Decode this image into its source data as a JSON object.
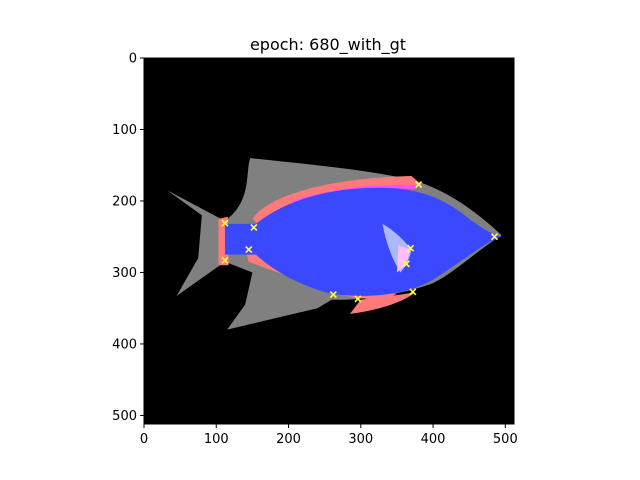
{
  "chart_data": {
    "type": "image",
    "title": "epoch: 680_with_gt",
    "xlabel": "",
    "ylabel": "",
    "xlim": [
      0,
      512
    ],
    "ylim": [
      512,
      0
    ],
    "x_ticks": [
      0,
      100,
      200,
      300,
      400,
      500
    ],
    "y_ticks": [
      0,
      100,
      200,
      300,
      400,
      500
    ],
    "grid": false,
    "background_color": "#000000",
    "region_colors": {
      "fish_outline": "#808080",
      "body_segment": "#3a48ff",
      "fin_segment": "#ff7b7b",
      "fin_highlight": "#ff4dff",
      "pectoral_fin": "#a9b8ff",
      "pectoral_fin_tip": "#ffbfff",
      "keypoint": "#ffff44"
    },
    "keypoints": [
      {
        "x": 112,
        "y": 231
      },
      {
        "x": 152,
        "y": 237
      },
      {
        "x": 380,
        "y": 177
      },
      {
        "x": 145,
        "y": 268
      },
      {
        "x": 112,
        "y": 283
      },
      {
        "x": 262,
        "y": 331
      },
      {
        "x": 296,
        "y": 337
      },
      {
        "x": 372,
        "y": 327
      },
      {
        "x": 369,
        "y": 266
      },
      {
        "x": 363,
        "y": 288
      },
      {
        "x": 485,
        "y": 250
      }
    ]
  }
}
